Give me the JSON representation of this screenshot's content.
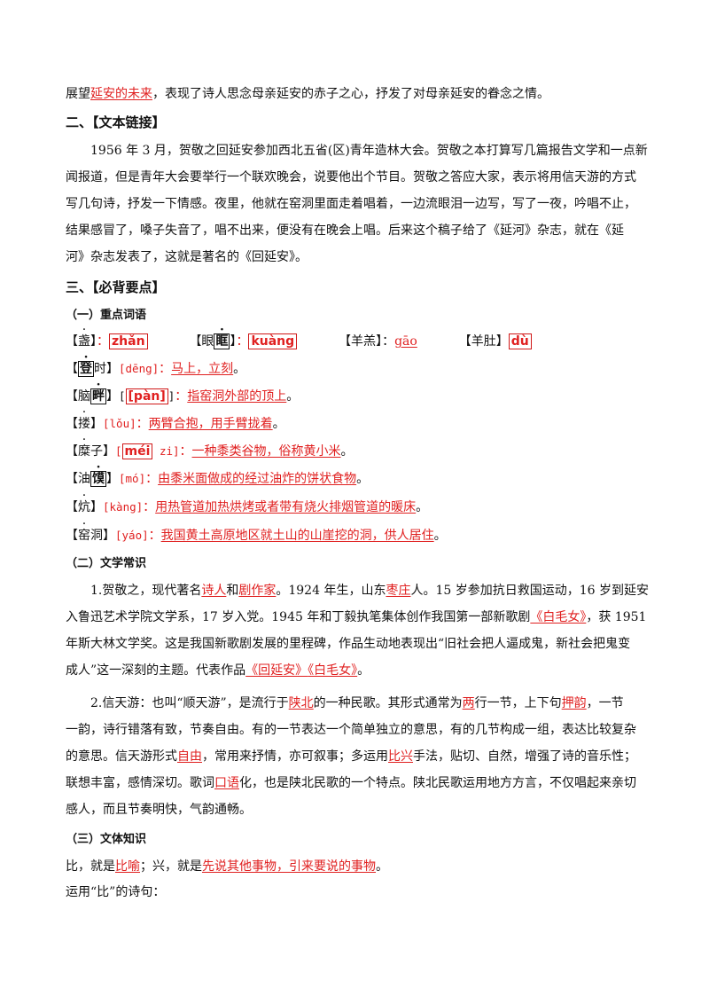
{
  "intro": {
    "pre": "展望",
    "hl": "延安的未来",
    "post": "，表现了诗人思念母亲延安的赤子之心，抒发了对母亲延安的眷念之情。"
  },
  "sec2": {
    "title": "二、【文本链接】",
    "lines": [
      "1956 年 3 月，贺敬之回延安参加西北五省(区)青年造林大会。贺敬之本打算写几篇报告文学和一点新",
      "闻报道，但是青年大会要举行一个联欢晚会，说要他出个节目。贺敬之答应大家，表示将用信天游的方式",
      "写几句诗，抒发一下情感。夜里，他就在窑洞里面走着唱着，一边流眼泪一边写，写了一夜，吟唱不止，",
      "结果感冒了，嗓子失音了，唱不出来，便没有在晚会上唱。后来这个稿子给了《延河》杂志，就在《延",
      "河》杂志发表了，这就是著名的《回延安》。"
    ]
  },
  "sec3": {
    "title": "三、【必背要点】",
    "sub1": "（一）重点词语",
    "sub2": "（二）文学常识",
    "sub3": "（三）文体知识"
  },
  "vocab": {
    "r1": {
      "w1": {
        "lb": "【",
        "ch": "盏",
        "rb": "】",
        "sep": "：",
        "py": "zhǎn"
      },
      "w2": {
        "lb": "【眼",
        "ch": "眶",
        "rb": "】",
        "sep": "：",
        "py": "kuàng"
      },
      "w3": {
        "lb": "【羊羔",
        "rb": "】",
        "sep": "：",
        "py": "gāo"
      },
      "w4": {
        "lb": "【羊肚",
        "rb": "】",
        "py": "dù"
      }
    },
    "v2": {
      "lb": "【",
      "ch": "登",
      "rest": "时】",
      "py": "[dēng]",
      "sep": "：",
      "def": "马上，立刻",
      "end": "。"
    },
    "v3": {
      "lb": "【脑",
      "ch": "畔",
      "rb": "】",
      "py": "[pàn]",
      "sep": "：",
      "def": "指窑洞外部的顶上",
      "end": "。"
    },
    "v4": {
      "lb": "【",
      "ch": "搂",
      "rb": "】",
      "py": "[lǒu]",
      "sep": "：",
      "def": "两臂合抱，用手臂拢着",
      "end": "。"
    },
    "v5": {
      "lb": "【",
      "ch": "糜",
      "rest": "子】",
      "py1": "[",
      "pyb": "méi",
      "py2": " zi]",
      "sep": "：",
      "def": "一种黍类谷物，俗称黄小米",
      "end": "。"
    },
    "v6": {
      "lb": "【油",
      "ch": "馍",
      "rb": "】",
      "py": "[mó]",
      "sep": "：",
      "def": "由黍米面做成的经过油炸的饼状食物",
      "end": "。"
    },
    "v7": {
      "lb": "【",
      "ch": "炕",
      "rb": "】",
      "py": "[kàng]",
      "sep": "：",
      "def": "用热管道加热烘烤或者带有烧火排烟管道的暖床",
      "end": "。"
    },
    "v8": {
      "lb": "【",
      "ch": "窑",
      "rest": "洞】",
      "py": "[yáo]",
      "sep": "：",
      "def": "我国黄土高原地区就土山的山崖挖的洞，供人居住",
      "end": "。"
    }
  },
  "lit": {
    "p1": {
      "l1a": "1.贺敬之，现代著名",
      "l1b": "诗人",
      "l1c": "和",
      "l1d": "剧作家",
      "l1e": "。1924 年生，山东",
      "l1f": "枣庄",
      "l1g": "人。15 岁参加抗日救国运动，16 岁到延安",
      "l2a": "入鲁迅艺术学院文学系，17 岁入党。1945 年和丁毅执笔集体创作我国第一部新歌剧",
      "l2b": "《白毛女》",
      "l2c": "，获 1951",
      "l3": "年斯大林文学奖。这是我国新歌剧发展的里程碑，作品生动地表现出“旧社会把人逼成鬼，新社会把鬼变",
      "l4a": "成人”这一深刻的主题。代表作品",
      "l4b": "《回延安》",
      "l4c": "《白毛女》",
      "l4d": "。"
    },
    "p2": {
      "l1a": "2.信天游：也叫“顺天游”，是流行于",
      "l1b": "陕北",
      "l1c": "的一种民歌。其形式通常为",
      "l1d": "两",
      "l1e": "行一节，上下句",
      "l1f": "押韵",
      "l1g": "，一节",
      "l2": "一韵，诗行错落有致，节奏自由。有的一节表达一个简单独立的意思，有的几节构成一组，表达比较复杂",
      "l3a": "的意思。信天游形式",
      "l3b": "自由",
      "l3c": "，常用来抒情，亦可叙事；多运用",
      "l3d": "比兴",
      "l3e": "手法，贴切、自然，增强了诗的音乐性；",
      "l4a": "联想丰富，感情深切。歌词",
      "l4b": "口语",
      "l4c": "化，也是陕北民歌的一个特点。陕北民歌运用地方方言，不仅唱起来亲切",
      "l5": "感人，而且节奏明快，气韵通畅。"
    }
  },
  "genre": {
    "a": "比，就是",
    "b": "比喻",
    "c": "；兴，就是",
    "d": "先说其他事物，引来要说的事物",
    "e": "。",
    "line2": "运用“比”的诗句："
  }
}
